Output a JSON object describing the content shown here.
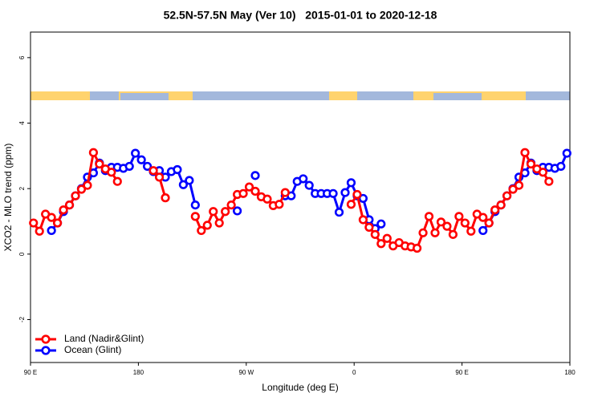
{
  "chart_data": {
    "type": "line",
    "title": "52.5N-57.5N May (Ver 10)   2015-01-01 to 2020-12-18",
    "x_label": "Longitude (deg E)",
    "y_label": "XCO2 - MLO trend (ppm)",
    "x": [
      92.5,
      97.5,
      102.5,
      107.5,
      112.5,
      117.5,
      122.5,
      127.5,
      132.5,
      137.5,
      142.5,
      147.5,
      152.5,
      157.5,
      162.5,
      167.5,
      172.5,
      177.5,
      182.5,
      187.5,
      192.5,
      197.5,
      202.5,
      207.5,
      212.5,
      217.5,
      222.5,
      227.5,
      232.5,
      237.5,
      242.5,
      247.5,
      252.5,
      257.5,
      262.5,
      267.5,
      272.5,
      277.5,
      282.5,
      287.5,
      292.5,
      297.5,
      302.5,
      307.5,
      312.5,
      317.5,
      322.5,
      327.5,
      332.5,
      337.5,
      342.5,
      347.5,
      352.5,
      357.5,
      362.5,
      367.5,
      372.5,
      377.5,
      382.5,
      387.5,
      392.5,
      397.5,
      402.5,
      407.5,
      412.5,
      417.5,
      422.5,
      427.5,
      432.5,
      437.5,
      442.5,
      447.5,
      452.5,
      457.5,
      462.5,
      467.5,
      472.5,
      477.5,
      482.5,
      487.5,
      492.5,
      497.5,
      502.5,
      507.5,
      512.5,
      517.5,
      522.5,
      527.5,
      532.5,
      537.5
    ],
    "series": [
      {
        "name": "Land (Nadir&Glint)",
        "color": "#ff0000",
        "values": [
          0.95,
          0.7,
          1.22,
          1.12,
          0.95,
          1.35,
          1.5,
          1.78,
          1.98,
          2.1,
          3.1,
          2.75,
          2.6,
          2.5,
          2.22,
          null,
          null,
          null,
          null,
          null,
          2.55,
          2.35,
          1.72,
          null,
          null,
          null,
          null,
          1.15,
          0.72,
          0.88,
          1.3,
          0.95,
          1.3,
          1.5,
          1.82,
          1.85,
          2.05,
          1.92,
          1.75,
          1.68,
          1.48,
          1.52,
          1.88,
          null,
          null,
          null,
          null,
          null,
          null,
          null,
          null,
          null,
          null,
          1.52,
          1.82,
          1.05,
          0.82,
          0.6,
          0.32,
          0.48,
          0.25,
          0.35,
          0.25,
          0.22,
          0.18,
          0.65,
          1.15,
          0.65,
          0.98,
          0.85,
          0.6,
          1.15,
          0.95,
          0.7,
          1.22,
          1.12,
          0.95,
          1.35,
          1.5,
          1.78,
          1.98,
          2.1,
          3.1,
          2.75,
          2.6,
          2.5,
          2.22,
          null,
          null,
          null
        ]
      },
      {
        "name": "Ocean (Glint)",
        "color": "#0000ff",
        "values": [
          null,
          null,
          null,
          0.72,
          0.95,
          1.3,
          1.5,
          1.78,
          2.0,
          2.35,
          2.48,
          2.78,
          2.55,
          2.65,
          2.65,
          2.62,
          2.68,
          3.08,
          2.88,
          2.68,
          2.52,
          2.55,
          2.35,
          2.52,
          2.58,
          2.12,
          2.25,
          1.5,
          null,
          null,
          null,
          null,
          null,
          null,
          1.32,
          null,
          null,
          2.4,
          null,
          null,
          null,
          null,
          1.78,
          1.78,
          2.22,
          2.3,
          2.1,
          1.85,
          1.85,
          1.85,
          1.85,
          1.28,
          1.88,
          2.18,
          1.78,
          1.7,
          1.05,
          0.78,
          0.92,
          null,
          null,
          null,
          null,
          null,
          null,
          null,
          null,
          null,
          null,
          null,
          null,
          null,
          null,
          null,
          null,
          0.72,
          0.95,
          1.3,
          1.5,
          1.78,
          2.0,
          2.35,
          2.48,
          2.78,
          2.55,
          2.65,
          2.65,
          2.62,
          2.68,
          3.08
        ]
      }
    ],
    "xlim": [
      90,
      540
    ],
    "xticks": [
      {
        "value": 90,
        "label": "90 E"
      },
      180,
      {
        "value": 270,
        "label": "90 W"
      },
      {
        "value": 360,
        "label": "0"
      },
      {
        "value": 450,
        "label": "90 E"
      },
      {
        "value": 540,
        "label": "180"
      }
    ],
    "ylim": [
      -3.31,
      6.78
    ],
    "yticks": [
      -2,
      0,
      2,
      4,
      6
    ],
    "legend": "lower left"
  }
}
